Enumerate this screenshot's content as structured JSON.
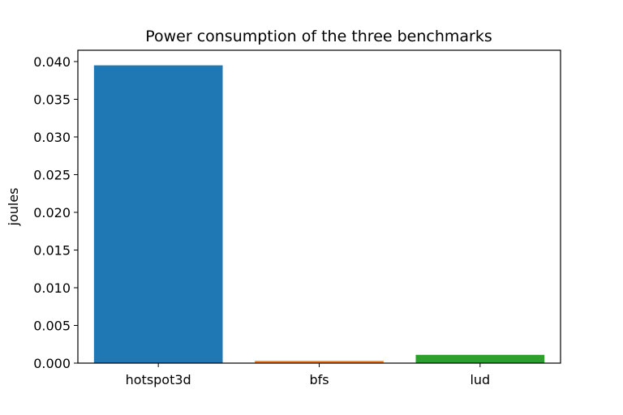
{
  "chart_data": {
    "type": "bar",
    "title": "Power consumption of the three benchmarks",
    "xlabel": "",
    "ylabel": "joules",
    "categories": [
      "hotspot3d",
      "bfs",
      "lud"
    ],
    "values": [
      0.0395,
      0.0003,
      0.0011
    ],
    "colors": [
      "#1f77b4",
      "#ff7f0e",
      "#2ca02c"
    ],
    "ylim": [
      0,
      0.0415
    ],
    "yticks": [
      0.0,
      0.005,
      0.01,
      0.015,
      0.02,
      0.025,
      0.03,
      0.035,
      0.04
    ],
    "ytick_labels": [
      "0.000",
      "0.005",
      "0.010",
      "0.015",
      "0.020",
      "0.025",
      "0.030",
      "0.035",
      "0.040"
    ],
    "grid": false,
    "legend": "none"
  }
}
